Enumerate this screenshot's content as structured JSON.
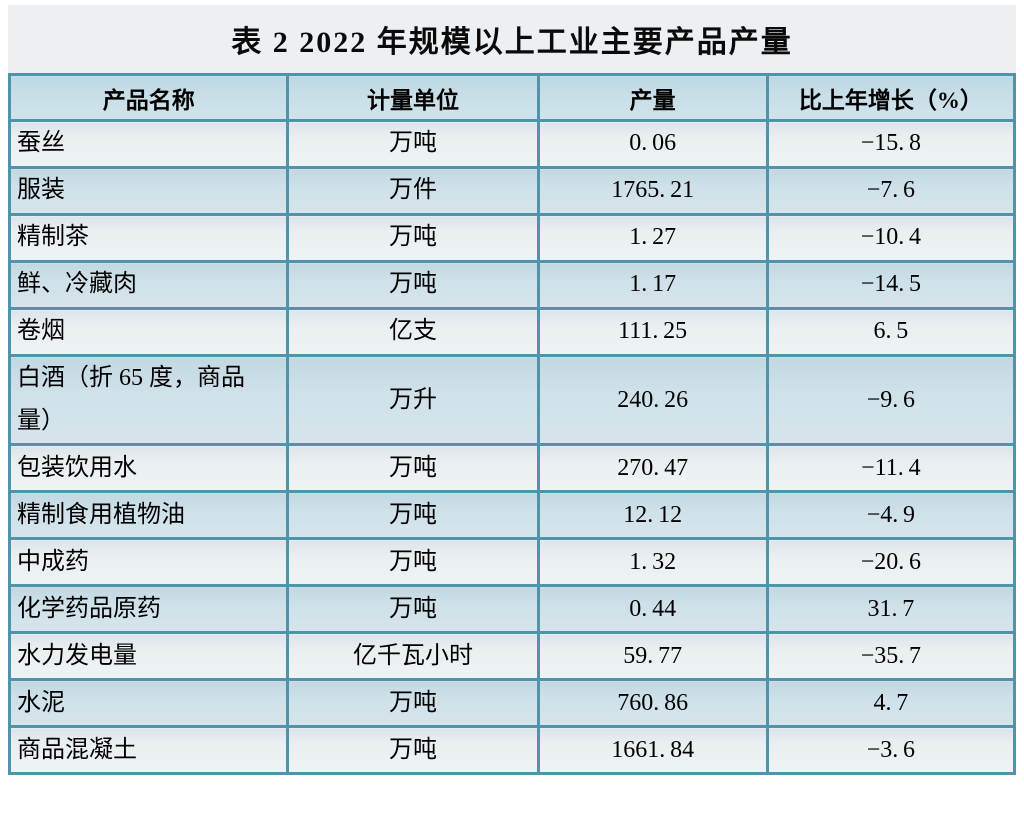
{
  "page": {
    "title": "表 2  2022 年规模以上工业主要产品产量"
  },
  "table": {
    "columns": [
      "产品名称",
      "计量单位",
      "产量",
      "比上年增长（%）"
    ],
    "rows": [
      [
        "蚕丝",
        "万吨",
        "0.06",
        "-15.8"
      ],
      [
        "服装",
        "万件",
        "1765.21",
        "-7.6"
      ],
      [
        "精制茶",
        "万吨",
        "1.27",
        "-10.4"
      ],
      [
        "鲜、冷藏肉",
        "万吨",
        "1.17",
        "-14.5"
      ],
      [
        "卷烟",
        "亿支",
        "111.25",
        "6.5"
      ],
      [
        "白酒（折 65 度，商品量）",
        "万升",
        "240.26",
        "-9.6"
      ],
      [
        "包装饮用水",
        "万吨",
        "270.47",
        "-11.4"
      ],
      [
        "精制食用植物油",
        "万吨",
        "12.12",
        "-4.9"
      ],
      [
        "中成药",
        "万吨",
        "1.32",
        "-20.6"
      ],
      [
        "化学药品原药",
        "万吨",
        "0.44",
        "31.7"
      ],
      [
        "水力发电量",
        "亿千瓦小时",
        "59.77",
        "-35.7"
      ],
      [
        "水泥",
        "万吨",
        "760.86",
        "4.7"
      ],
      [
        "商品混凝土",
        "万吨",
        "1661.84",
        "-3.6"
      ]
    ]
  },
  "colors": {
    "border": "#4a92a8",
    "header_bg": "#c9dfe8",
    "row_light_bg": "#ebf0f2",
    "row_blue_bg": "#cfe1e9",
    "title_band_bg": "#edf0f2",
    "text": "#000000",
    "page_margin": "#ffffff"
  }
}
